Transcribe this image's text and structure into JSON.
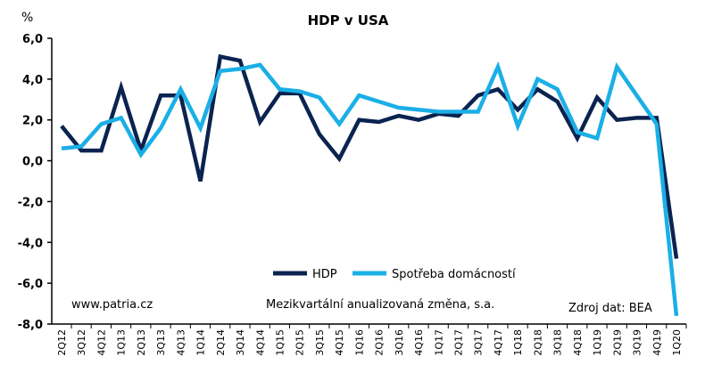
{
  "chart_data": {
    "type": "line",
    "title": "HDP v USA",
    "ylabel": "%",
    "ylim": [
      -8,
      6
    ],
    "yticks": [
      "6,0",
      "4,0",
      "2,0",
      "0,0",
      "-2,0",
      "-4,0",
      "-6,0",
      "-8,0"
    ],
    "ytick_values": [
      6,
      4,
      2,
      0,
      -2,
      -4,
      -6,
      -8
    ],
    "grid": false,
    "legend_placement": "bottom-center",
    "categories": [
      "2Q12",
      "3Q12",
      "4Q12",
      "1Q13",
      "2Q13",
      "3Q13",
      "4Q13",
      "1Q14",
      "2Q14",
      "3Q14",
      "4Q14",
      "1Q15",
      "2Q15",
      "3Q15",
      "4Q15",
      "1Q16",
      "2Q16",
      "3Q16",
      "4Q16",
      "1Q17",
      "2Q17",
      "3Q17",
      "4Q17",
      "1Q18",
      "2Q18",
      "3Q18",
      "4Q18",
      "1Q19",
      "2Q19",
      "3Q19",
      "4Q19",
      "1Q20"
    ],
    "series": [
      {
        "name": "HDP",
        "color": "#0b2350",
        "values": [
          1.7,
          0.5,
          0.5,
          3.6,
          0.5,
          3.2,
          3.2,
          -1.0,
          5.1,
          4.9,
          1.9,
          3.3,
          3.3,
          1.3,
          0.1,
          2.0,
          1.9,
          2.2,
          2.0,
          2.3,
          2.2,
          3.2,
          3.5,
          2.5,
          3.5,
          2.9,
          1.1,
          3.1,
          2.0,
          2.1,
          2.1,
          -4.8
        ]
      },
      {
        "name": "Spotřeba domácností",
        "color": "#1aafe6",
        "values": [
          0.6,
          0.7,
          1.8,
          2.1,
          0.3,
          1.6,
          3.5,
          1.6,
          4.4,
          4.5,
          4.7,
          3.5,
          3.4,
          3.1,
          1.8,
          3.2,
          2.9,
          2.6,
          2.5,
          2.4,
          2.4,
          2.4,
          4.6,
          1.7,
          4.0,
          3.5,
          1.4,
          1.1,
          4.6,
          3.2,
          1.8,
          -7.6
        ]
      }
    ],
    "annotations": {
      "source_site": "www.patria.cz",
      "note": "Mezikvartální anualizovaná změna, s.a.",
      "source": "Zdroj dat: BEA"
    }
  }
}
